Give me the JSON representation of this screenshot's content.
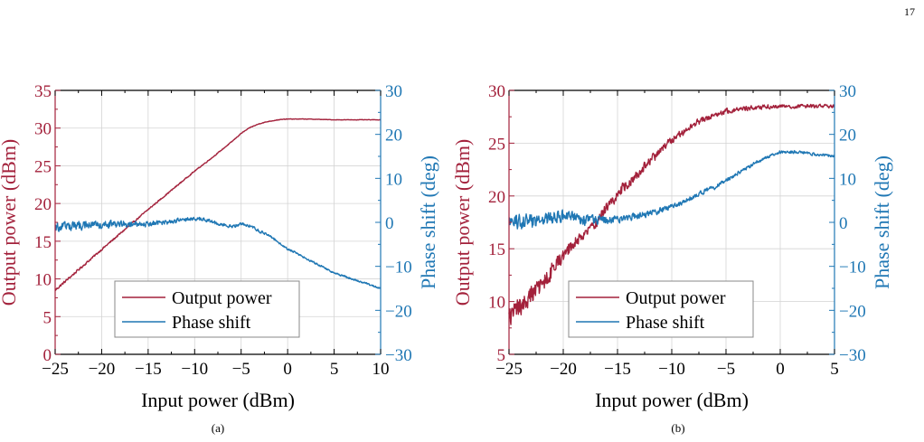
{
  "page_number": "17",
  "colors": {
    "output": "#a3213b",
    "phase": "#1f77b4",
    "axis": "#000000",
    "grid": "#d4d4d4"
  },
  "chart_data": [
    {
      "type": "line",
      "caption": "(a)",
      "xlabel": "Input power (dBm)",
      "ylabel_left": "Output power (dBm)",
      "ylabel_right": "Phase shift (deg)",
      "xlim": [
        -25,
        10
      ],
      "ylim_left": [
        0,
        35
      ],
      "ylim_right": [
        -30,
        30
      ],
      "xticks": [
        -25,
        -20,
        -15,
        -10,
        -5,
        0,
        5,
        10
      ],
      "yticks_left": [
        0,
        5,
        10,
        15,
        20,
        25,
        30,
        35
      ],
      "yticks_right": [
        -30,
        -20,
        -10,
        0,
        10,
        20,
        30
      ],
      "grid": true,
      "legend": {
        "position": "bottom-center",
        "entries": [
          "Output power",
          "Phase shift"
        ]
      },
      "series": [
        {
          "name": "Output power",
          "axis": "left",
          "x": [
            -25,
            -20,
            -15,
            -10,
            -8,
            -6,
            -5,
            -4,
            -3,
            -2,
            -1,
            0,
            2,
            5,
            10
          ],
          "y": [
            8.5,
            13.9,
            19.2,
            24.3,
            26.2,
            28.2,
            29.3,
            30.1,
            30.6,
            30.9,
            31.1,
            31.2,
            31.2,
            31.1,
            31.1
          ],
          "noise": 0.15
        },
        {
          "name": "Phase shift",
          "axis": "right",
          "x": [
            -25,
            -20,
            -15,
            -12,
            -10,
            -9,
            -8,
            -7,
            -6,
            -5,
            -4,
            -3,
            -2,
            0,
            5,
            10
          ],
          "y": [
            -1,
            -0.5,
            -0.3,
            0.3,
            0.8,
            0.6,
            0,
            -0.5,
            -1,
            -0.4,
            -0.8,
            -2,
            -3,
            -6,
            -11.5,
            -15
          ],
          "noise": 1.0
        }
      ]
    },
    {
      "type": "line",
      "caption": "(b)",
      "xlabel": "Input power (dBm)",
      "ylabel_left": "Output power (dBm)",
      "ylabel_right": "Phase shift (deg)",
      "xlim": [
        -25,
        5
      ],
      "ylim_left": [
        5,
        30
      ],
      "ylim_right": [
        -30,
        30
      ],
      "xticks": [
        -25,
        -20,
        -15,
        -10,
        -5,
        0,
        5
      ],
      "yticks_left": [
        5,
        10,
        15,
        20,
        25,
        30
      ],
      "yticks_right": [
        -30,
        -20,
        -10,
        0,
        10,
        20,
        30
      ],
      "grid": true,
      "legend": {
        "position": "bottom-center",
        "entries": [
          "Output power",
          "Phase shift"
        ]
      },
      "series": [
        {
          "name": "Output power",
          "axis": "left",
          "x": [
            -25,
            -22,
            -20,
            -17,
            -15,
            -12,
            -10,
            -8,
            -7,
            -6,
            -5,
            -4,
            -2,
            0,
            2,
            5
          ],
          "y": [
            8.5,
            11.5,
            14.5,
            17.5,
            20.2,
            23.3,
            25.3,
            26.8,
            27.3,
            27.7,
            28.0,
            28.2,
            28.4,
            28.5,
            28.5,
            28.5
          ],
          "noise": 0.9
        },
        {
          "name": "Phase shift",
          "axis": "right",
          "x": [
            -25,
            -22,
            -20,
            -18,
            -16,
            -14,
            -12,
            -10,
            -9,
            -8,
            -7,
            -6,
            -4,
            -2,
            -1,
            0,
            2,
            3,
            5
          ],
          "y": [
            0,
            0.5,
            1.5,
            0.5,
            0.5,
            1,
            2,
            3.5,
            4.5,
            6,
            7,
            8,
            11,
            14,
            15,
            16,
            16,
            15.5,
            15
          ],
          "noise": 1.6
        }
      ]
    }
  ]
}
